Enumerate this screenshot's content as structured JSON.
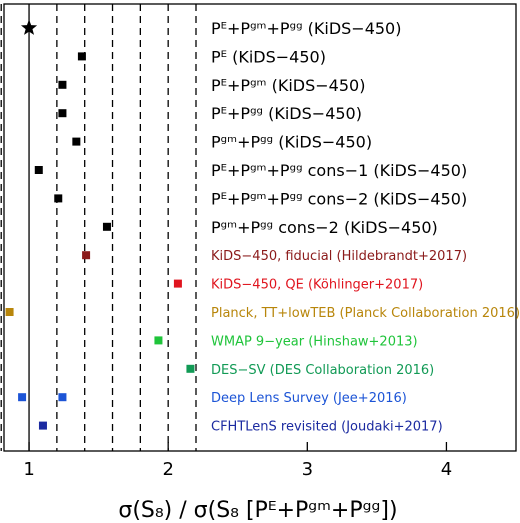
{
  "chart_data": {
    "type": "scatter",
    "xlabel": "σ(S₈) / σ(S₈ [Pᴱ+Pᵍᵐ+Pᵍᵍ])",
    "xlim": [
      0.82,
      4.5
    ],
    "xticks": [
      1,
      2,
      3,
      4
    ],
    "x_tick_labels": [
      "1",
      "2",
      "3",
      "4"
    ],
    "grid": false,
    "reference_line_x": 1.0,
    "reference_line_style": "solid",
    "dashed_verticals_x": [
      0.8,
      1.0,
      1.2,
      1.4,
      1.6,
      1.8,
      2.0,
      2.2
    ],
    "legend": "labels placed beside each row",
    "rows": [
      {
        "label": "Pᴱ+Pᵍᵐ+Pᵍᵍ (KiDS−450)",
        "value": 1.0,
        "marker": "star",
        "color": "#000000"
      },
      {
        "label": "Pᴱ (KiDS−450)",
        "value": 1.38,
        "marker": "square",
        "color": "#000000"
      },
      {
        "label": "Pᴱ+Pᵍᵐ (KiDS−450)",
        "value": 1.24,
        "marker": "square",
        "color": "#000000"
      },
      {
        "label": "Pᴱ+Pᵍᵍ (KiDS−450)",
        "value": 1.24,
        "marker": "square",
        "color": "#000000"
      },
      {
        "label": "Pᵍᵐ+Pᵍᵍ (KiDS−450)",
        "value": 1.34,
        "marker": "square",
        "color": "#000000"
      },
      {
        "label": "Pᴱ+Pᵍᵐ+Pᵍᵍ cons−1 (KiDS−450)",
        "value": 1.07,
        "marker": "square",
        "color": "#000000"
      },
      {
        "label": "Pᴱ+Pᵍᵐ+Pᵍᵍ cons−2 (KiDS−450)",
        "value": 1.21,
        "marker": "square",
        "color": "#000000"
      },
      {
        "label": "Pᵍᵐ+Pᵍᵍ cons−2 (KiDS−450)",
        "value": 1.56,
        "marker": "square",
        "color": "#000000"
      },
      {
        "label": "KiDS−450, fiducial (Hildebrandt+2017)",
        "value": 1.41,
        "marker": "square",
        "color": "#8b1a1a"
      },
      {
        "label": "KiDS−450, QE (Köhlinger+2017)",
        "value": 2.07,
        "marker": "square",
        "color": "#e0141e"
      },
      {
        "label": "Planck, TT+lowTEB (Planck Collaboration 2016)",
        "value": 0.86,
        "marker": "square",
        "color": "#b8860b"
      },
      {
        "label": "WMAP 9−year (Hinshaw+2013)",
        "value": 1.93,
        "marker": "square",
        "color": "#1fc43a"
      },
      {
        "label": "DES−SV (DES Collaboration 2016)",
        "value": 2.16,
        "marker": "square",
        "color": "#119a55"
      },
      {
        "label": "Deep Lens Survey (Jee+2016)",
        "value": 0.95,
        "marker": "square",
        "color": "#1c54d6"
      },
      {
        "label": "Deep Lens Survey (Jee+2016)",
        "value": 1.24,
        "marker": "square",
        "color": "#1c54d6",
        "no_label": true
      },
      {
        "label": "CFHTLenS revisited (Joudaki+2017)",
        "value": 1.1,
        "marker": "square",
        "color": "#1b2aa0"
      }
    ]
  }
}
